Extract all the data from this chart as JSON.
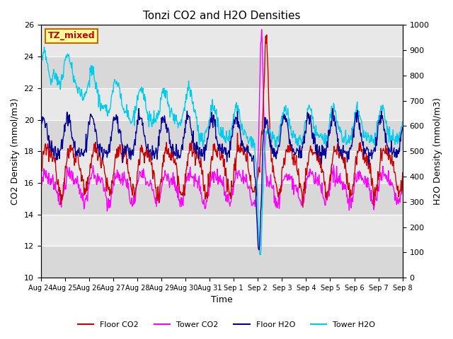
{
  "title": "Tonzi CO2 and H2O Densities",
  "xlabel": "Time",
  "ylabel_left": "CO2 Density (mmol/m3)",
  "ylabel_right": "H2O Density (mmol/m3)",
  "annotation": "TZ_mixed",
  "ylim_left": [
    10,
    26
  ],
  "ylim_right": [
    0,
    1000
  ],
  "xtick_labels": [
    "Aug 24",
    "Aug 25",
    "Aug 26",
    "Aug 27",
    "Aug 28",
    "Aug 29",
    "Aug 30",
    "Aug 31",
    "Sep 1",
    "Sep 2",
    "Sep 3",
    "Sep 4",
    "Sep 5",
    "Sep 6",
    "Sep 7",
    "Sep 8"
  ],
  "colors": {
    "floor_co2": "#cc0000",
    "tower_co2": "#ff00ff",
    "floor_h2o": "#000099",
    "tower_h2o": "#00ccee"
  },
  "legend_labels": [
    "Floor CO2",
    "Tower CO2",
    "Floor H2O",
    "Tower H2O"
  ],
  "bg_color": "#e0e0e0",
  "bg_band1": "#d8d8d8",
  "bg_band2": "#e8e8e8",
  "fig_bg": "#ffffff",
  "n_points": 720,
  "yticks_left": [
    10,
    12,
    14,
    16,
    18,
    20,
    22,
    24,
    26
  ],
  "yticks_right": [
    0,
    100,
    200,
    300,
    400,
    500,
    600,
    700,
    800,
    900,
    1000
  ]
}
